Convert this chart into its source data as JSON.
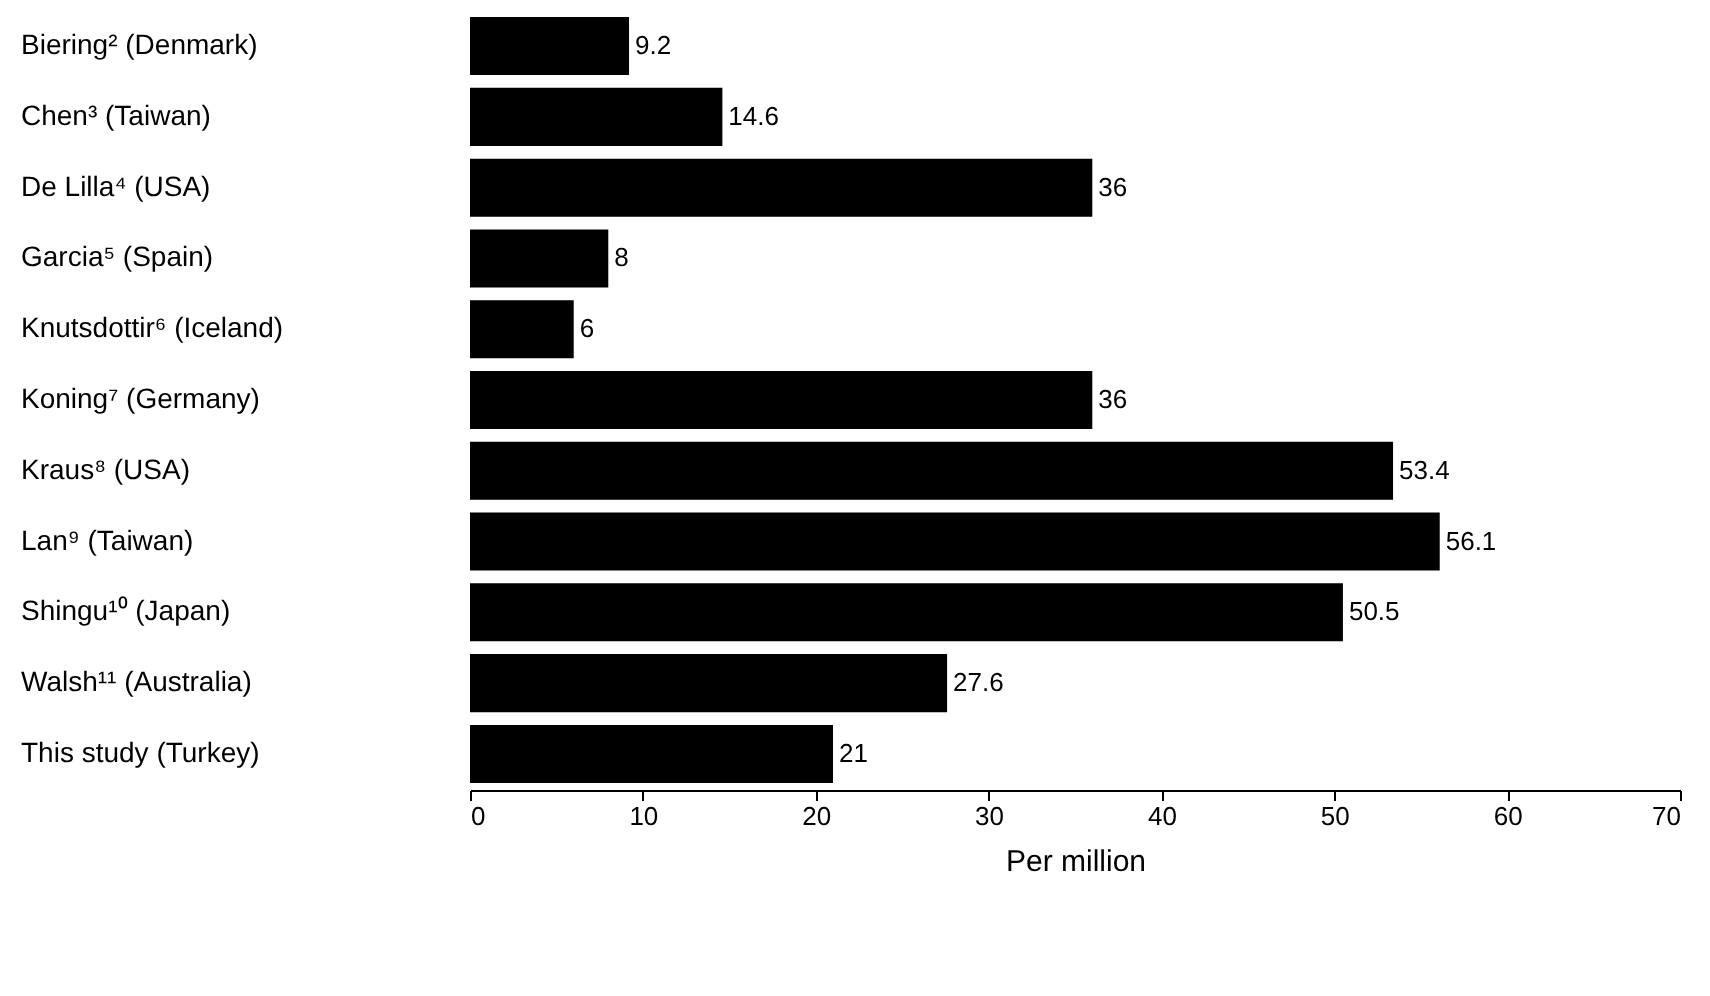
{
  "chart_data": {
    "type": "bar",
    "orientation": "horizontal",
    "xlabel": "Per million",
    "categories": [
      "Biering² (Denmark)",
      "Chen³ (Taiwan)",
      "De Lilla⁴ (USA)",
      "Garcia⁵ (Spain)",
      "Knutsdottir⁶ (Iceland)",
      "Koning⁷ (Germany)",
      "Kraus⁸ (USA)",
      "Lan⁹ (Taiwan)",
      "Shingu¹⁰ (Japan)",
      "Walsh¹¹ (Australia)",
      "This study (Turkey)"
    ],
    "values": [
      9.2,
      14.6,
      36,
      8,
      6,
      36,
      53.4,
      56.1,
      50.5,
      27.6,
      21
    ],
    "color": "#000000",
    "data_labels": true,
    "xlim": [
      0,
      70
    ],
    "xticks": [
      0,
      10,
      20,
      30,
      40,
      50,
      60,
      70
    ]
  }
}
